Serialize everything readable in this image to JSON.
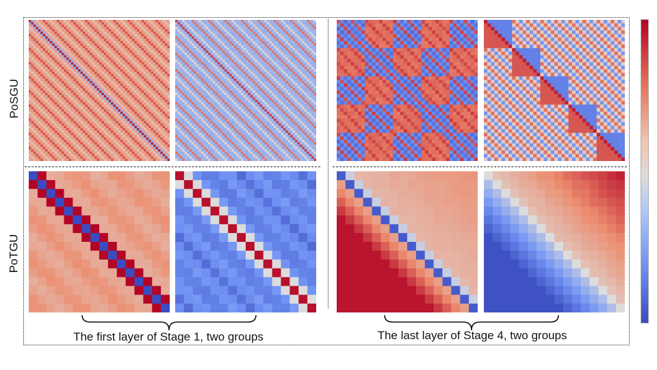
{
  "rows": [
    {
      "label": "PoSGU"
    },
    {
      "label": "PoTGU"
    }
  ],
  "captions": [
    {
      "text": "The first layer of Stage 1, two groups"
    },
    {
      "text": "The last layer of Stage 4, two groups"
    }
  ],
  "colors": {
    "high": "#b40426",
    "mid": "#dddcdc",
    "low": "#3b4cc0"
  },
  "panels": [
    {
      "name": "posgu-stage1-group1",
      "kind": "fine-warm",
      "n": 60
    },
    {
      "name": "posgu-stage1-group2",
      "kind": "fine-cool",
      "n": 60
    },
    {
      "name": "posgu-stage4-group1",
      "kind": "checker-cool",
      "n": 40
    },
    {
      "name": "posgu-stage4-group2",
      "kind": "block-diag",
      "n": 40
    },
    {
      "name": "potgu-stage1-group1",
      "kind": "toeplitz-warm",
      "n": 16
    },
    {
      "name": "potgu-stage1-group2",
      "kind": "toeplitz-cool",
      "n": 16
    },
    {
      "name": "potgu-stage4-group1",
      "kind": "lower-warm",
      "n": 16
    },
    {
      "name": "potgu-stage4-group2",
      "kind": "lower-cool",
      "n": 16
    }
  ]
}
